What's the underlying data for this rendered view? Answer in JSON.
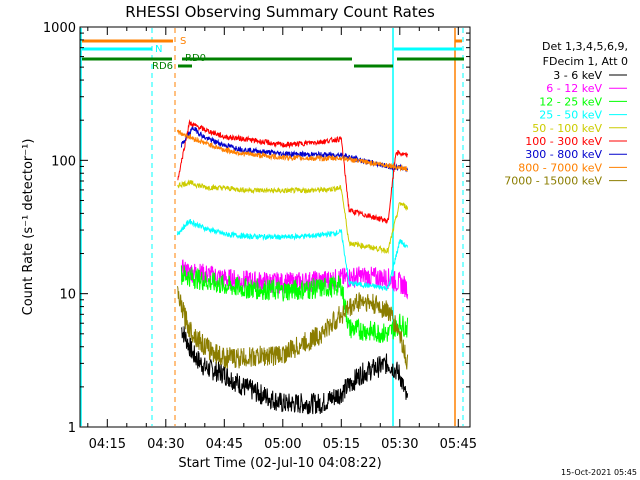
{
  "chart_data": {
    "type": "line",
    "title": "RHESSI Observing Summary Count Rates",
    "xlabel": "Start Time (02-Jul-10 04:08:22)",
    "ylabel": "Count Rate (s⁻¹ detector⁻¹)",
    "y_scale": "log",
    "ylim": [
      1,
      1000
    ],
    "y_ticks": [
      "1",
      "10",
      "100",
      "1000"
    ],
    "x_range_minutes": [
      "04:08",
      "05:48"
    ],
    "x_ticks": [
      "04:15",
      "04:30",
      "04:45",
      "05:00",
      "05:15",
      "05:30",
      "05:45"
    ],
    "legend": {
      "header": [
        "Det 1,3,4,5,6,9,",
        "FDecim 1, Att 0"
      ],
      "placement": "right",
      "entries": [
        {
          "name": "3 - 6 keV",
          "color": "#000000"
        },
        {
          "name": "6 - 12 keV",
          "color": "#ff00ff"
        },
        {
          "name": "12 - 25 keV",
          "color": "#00ff00"
        },
        {
          "name": "25 - 50 keV",
          "color": "#00ffff"
        },
        {
          "name": "50 - 100 keV",
          "color": "#cccc00"
        },
        {
          "name": "100 - 300 keV",
          "color": "#ff0000"
        },
        {
          "name": "300 - 800 keV",
          "color": "#0000cc"
        },
        {
          "name": "800 - 7000 keV",
          "color": "#ff8000"
        },
        {
          "name": "7000 - 15000 keV",
          "color": "#8b7d00"
        }
      ]
    },
    "flag_labels": {
      "s": "S",
      "n": "N",
      "rd0": "RD0",
      "rd6": "RD6"
    },
    "series": [
      {
        "name": "3 - 6 keV",
        "color": "#000000",
        "points": [
          [
            "04:34",
            5.5
          ],
          [
            "04:37",
            3.5
          ],
          [
            "04:40",
            2.8
          ],
          [
            "04:45",
            2.5
          ],
          [
            "04:50",
            2.0
          ],
          [
            "05:00",
            1.5
          ],
          [
            "05:10",
            1.5
          ],
          [
            "05:15",
            1.8
          ],
          [
            "05:20",
            2.5
          ],
          [
            "05:27",
            3.0
          ],
          [
            "05:30",
            2.5
          ],
          [
            "05:32",
            1.5
          ]
        ]
      },
      {
        "name": "6 - 12 keV",
        "color": "#ff00ff",
        "points": [
          [
            "04:34",
            15
          ],
          [
            "04:40",
            14
          ],
          [
            "04:45",
            13
          ],
          [
            "04:50",
            12.5
          ],
          [
            "05:00",
            12
          ],
          [
            "05:10",
            12.5
          ],
          [
            "05:15",
            13
          ],
          [
            "05:20",
            13.5
          ],
          [
            "05:27",
            13
          ],
          [
            "05:30",
            12
          ],
          [
            "05:32",
            11
          ]
        ]
      },
      {
        "name": "12 - 25 keV",
        "color": "#00ff00",
        "points": [
          [
            "04:34",
            14
          ],
          [
            "04:40",
            12.5
          ],
          [
            "04:45",
            11.5
          ],
          [
            "04:50",
            11
          ],
          [
            "05:00",
            10.5
          ],
          [
            "05:10",
            11
          ],
          [
            "05:15",
            11.5
          ],
          [
            "05:17",
            5.5
          ],
          [
            "05:27",
            5.0
          ],
          [
            "05:30",
            6.0
          ],
          [
            "05:32",
            5.5
          ]
        ]
      },
      {
        "name": "25 - 50 keV",
        "color": "#00ffff",
        "points": [
          [
            "04:33",
            28
          ],
          [
            "04:36",
            35
          ],
          [
            "04:40",
            31
          ],
          [
            "04:45",
            28
          ],
          [
            "04:50",
            27
          ],
          [
            "05:00",
            26.5
          ],
          [
            "05:10",
            27.5
          ],
          [
            "05:15",
            29
          ],
          [
            "05:17",
            12
          ],
          [
            "05:27",
            11
          ],
          [
            "05:30",
            25
          ],
          [
            "05:32",
            22
          ]
        ]
      },
      {
        "name": "50 - 100 keV",
        "color": "#cccc00",
        "points": [
          [
            "04:33",
            65
          ],
          [
            "04:36",
            68
          ],
          [
            "04:40",
            63
          ],
          [
            "04:45",
            62
          ],
          [
            "04:50",
            60
          ],
          [
            "05:00",
            59
          ],
          [
            "05:10",
            60
          ],
          [
            "05:15",
            62
          ],
          [
            "05:17",
            24
          ],
          [
            "05:27",
            21
          ],
          [
            "05:30",
            48
          ],
          [
            "05:32",
            44
          ]
        ]
      },
      {
        "name": "100 - 300 keV",
        "color": "#ff0000",
        "points": [
          [
            "04:33",
            70
          ],
          [
            "04:36",
            190
          ],
          [
            "04:40",
            170
          ],
          [
            "04:45",
            150
          ],
          [
            "04:50",
            145
          ],
          [
            "05:00",
            130
          ],
          [
            "05:10",
            138
          ],
          [
            "05:15",
            145
          ],
          [
            "05:17",
            42
          ],
          [
            "05:27",
            35
          ],
          [
            "05:29",
            115
          ],
          [
            "05:32",
            108
          ]
        ]
      },
      {
        "name": "300 - 800 keV",
        "color": "#0000cc",
        "points": [
          [
            "04:34",
            130
          ],
          [
            "04:37",
            175
          ],
          [
            "04:40",
            148
          ],
          [
            "04:45",
            130
          ],
          [
            "04:50",
            120
          ],
          [
            "05:00",
            112
          ],
          [
            "05:10",
            110
          ],
          [
            "05:15",
            110
          ],
          [
            "05:20",
            100
          ],
          [
            "05:27",
            90
          ],
          [
            "05:30",
            88
          ],
          [
            "05:32",
            86
          ]
        ]
      },
      {
        "name": "800 - 7000 keV",
        "color": "#ff8000",
        "points": [
          [
            "04:33",
            165
          ],
          [
            "04:36",
            150
          ],
          [
            "04:40",
            135
          ],
          [
            "04:45",
            120
          ],
          [
            "04:50",
            112
          ],
          [
            "05:00",
            105
          ],
          [
            "05:10",
            103
          ],
          [
            "05:15",
            104
          ],
          [
            "05:20",
            98
          ],
          [
            "05:27",
            92
          ],
          [
            "05:30",
            88
          ],
          [
            "05:32",
            86
          ]
        ]
      },
      {
        "name": "7000 - 15000 keV",
        "color": "#8b7d00",
        "points": [
          [
            "04:33",
            9.5
          ],
          [
            "04:36",
            5.5
          ],
          [
            "04:40",
            4.0
          ],
          [
            "04:45",
            3.3
          ],
          [
            "04:50",
            3.3
          ],
          [
            "05:00",
            3.5
          ],
          [
            "05:10",
            5.0
          ],
          [
            "05:15",
            7.0
          ],
          [
            "05:20",
            9.0
          ],
          [
            "05:27",
            7.5
          ],
          [
            "05:30",
            5.0
          ],
          [
            "05:32",
            3.0
          ]
        ]
      }
    ]
  },
  "footer": {
    "timestamp": "15-Oct-2021 05:45"
  }
}
